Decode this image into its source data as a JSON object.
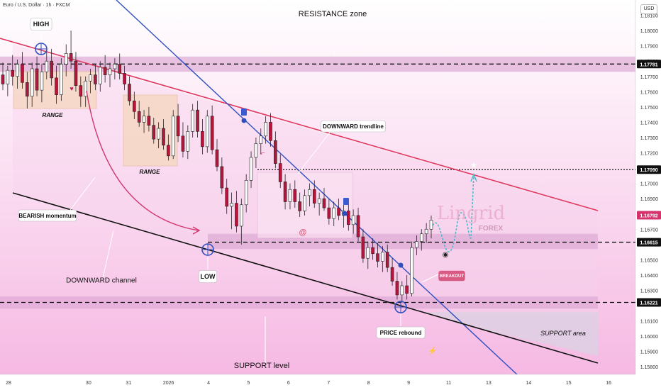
{
  "header": {
    "title": "Euro / U.S. Dollar · 1h · FXCM",
    "currency": "USD"
  },
  "watermark": {
    "brand": "Lingrid",
    "sub": "FOREX"
  },
  "colors": {
    "background_top": "#ffffff",
    "background_bottom": "#f7bde6",
    "channel_fill": "#f9dbef",
    "zone_fill": "#e4b3dc",
    "resistance_line": "#e0385f",
    "blue_trendline": "#2f4fbf",
    "support_line": "#111111",
    "candle_up": "#1a1a1a",
    "candle_down": "#1a1a1a",
    "candle_body_up": "#ffffff",
    "candle_body_down": "#b5163b",
    "range_box": "#f6d8c2",
    "projection": "#49b8c9",
    "breakout_badge": "#d85a83",
    "price_badge": "#111111"
  },
  "annotations": {
    "high": "HIGH",
    "low": "LOW",
    "range1": "RANGE",
    "range2": "RANGE",
    "resistance_zone": "RESISTANCE zone",
    "downward_trendline": "DOWNWARD trendline",
    "bearish_momentum": "BEARISH momentum",
    "downward_channel": "DOWNWARD channel",
    "support_level": "SUPPORT level",
    "support_area": "SUPPORT area",
    "price_rebound": "PRICE rebound",
    "breakout": "BREAKOUT"
  },
  "chart_data": {
    "type": "candlestick",
    "title": "Euro / U.S. Dollar · 1h · FXCM",
    "y_axis": {
      "range": [
        1.1575,
        1.182
      ],
      "ticks": [
        "1.18100",
        "1.18000",
        "1.17900",
        "1.17800",
        "1.17700",
        "1.17600",
        "1.17500",
        "1.17400",
        "1.17300",
        "1.17200",
        "1.17000",
        "1.16900",
        "1.16700",
        "1.16500",
        "1.16400",
        "1.16300",
        "1.16100",
        "1.16000",
        "1.15900",
        "1.15800"
      ],
      "tick_values": [
        1.181,
        1.18,
        1.179,
        1.178,
        1.177,
        1.176,
        1.175,
        1.174,
        1.173,
        1.172,
        1.17,
        1.169,
        1.167,
        1.165,
        1.164,
        1.163,
        1.161,
        1.16,
        1.159,
        1.158
      ]
    },
    "x_axis": {
      "ticks": [
        "28",
        "30",
        "31",
        "2026",
        "4",
        "5",
        "6",
        "7",
        "8",
        "9",
        "11",
        "13",
        "14",
        "15",
        "16"
      ],
      "tick_positions": [
        28,
        30,
        31,
        32,
        33,
        34,
        35,
        36,
        37,
        38,
        39,
        40,
        41,
        42,
        43
      ]
    },
    "price_levels": [
      {
        "value": 1.17781,
        "label": "1.17781",
        "style": "dashed"
      },
      {
        "value": 1.1709,
        "label": "1.17090",
        "style": "dotted"
      },
      {
        "value": 1.16792,
        "label": "1.16792",
        "style": "current"
      },
      {
        "value": 1.16615,
        "label": "1.16615",
        "style": "dashed"
      },
      {
        "value": 1.16221,
        "label": "1.16221",
        "style": "dashed"
      }
    ],
    "zones": [
      {
        "name": "resistance",
        "from": 1.1773,
        "to": 1.1783
      },
      {
        "name": "middle",
        "from": 1.1657,
        "to": 1.1667
      },
      {
        "name": "support",
        "from": 1.1618,
        "to": 1.1626
      }
    ],
    "candles": [
      [
        1.1771,
        1.1779,
        1.1761,
        1.1765
      ],
      [
        1.1765,
        1.1777,
        1.1757,
        1.1774
      ],
      [
        1.1774,
        1.1784,
        1.1764,
        1.177
      ],
      [
        1.177,
        1.1781,
        1.1762,
        1.1778
      ],
      [
        1.1778,
        1.1786,
        1.1762,
        1.1766
      ],
      [
        1.1766,
        1.1773,
        1.1749,
        1.1757
      ],
      [
        1.1757,
        1.1779,
        1.175,
        1.1775
      ],
      [
        1.1775,
        1.1783,
        1.1757,
        1.1761
      ],
      [
        1.1761,
        1.1778,
        1.1753,
        1.1773
      ],
      [
        1.1773,
        1.1787,
        1.1768,
        1.178
      ],
      [
        1.178,
        1.1788,
        1.1764,
        1.1769
      ],
      [
        1.1769,
        1.1777,
        1.1752,
        1.1758
      ],
      [
        1.1758,
        1.1782,
        1.1754,
        1.1778
      ],
      [
        1.1778,
        1.1791,
        1.177,
        1.1785
      ],
      [
        1.1785,
        1.18,
        1.1775,
        1.178
      ],
      [
        1.178,
        1.1786,
        1.176,
        1.1764
      ],
      [
        1.1764,
        1.177,
        1.175,
        1.1757
      ],
      [
        1.1757,
        1.177,
        1.175,
        1.1767
      ],
      [
        1.1767,
        1.1775,
        1.1759,
        1.1771
      ],
      [
        1.1771,
        1.1778,
        1.1761,
        1.1765
      ],
      [
        1.1765,
        1.178,
        1.176,
        1.1776
      ],
      [
        1.1776,
        1.1784,
        1.1766,
        1.1771
      ],
      [
        1.1771,
        1.1779,
        1.1763,
        1.1775
      ],
      [
        1.1775,
        1.1782,
        1.1768,
        1.1778
      ],
      [
        1.1778,
        1.1785,
        1.1768,
        1.1772
      ],
      [
        1.1772,
        1.1777,
        1.1761,
        1.1765
      ],
      [
        1.1765,
        1.177,
        1.1751,
        1.1754
      ],
      [
        1.1754,
        1.176,
        1.1742,
        1.1747
      ],
      [
        1.1747,
        1.1754,
        1.1737,
        1.174
      ],
      [
        1.174,
        1.1748,
        1.1733,
        1.1744
      ],
      [
        1.1744,
        1.175,
        1.1734,
        1.1738
      ],
      [
        1.1738,
        1.1743,
        1.1726,
        1.1729
      ],
      [
        1.1729,
        1.174,
        1.1723,
        1.1736
      ],
      [
        1.1736,
        1.1742,
        1.1722,
        1.1725
      ],
      [
        1.1725,
        1.1732,
        1.1715,
        1.1718
      ],
      [
        1.1718,
        1.1748,
        1.1716,
        1.1744
      ],
      [
        1.1744,
        1.1752,
        1.1727,
        1.1731
      ],
      [
        1.1731,
        1.174,
        1.1717,
        1.1721
      ],
      [
        1.1721,
        1.1738,
        1.1716,
        1.1734
      ],
      [
        1.1734,
        1.1752,
        1.173,
        1.1748
      ],
      [
        1.1748,
        1.1754,
        1.173,
        1.1734
      ],
      [
        1.1734,
        1.1742,
        1.1719,
        1.1724
      ],
      [
        1.1724,
        1.1748,
        1.172,
        1.1744
      ],
      [
        1.1744,
        1.1751,
        1.1719,
        1.1722
      ],
      [
        1.1722,
        1.1729,
        1.1708,
        1.1711
      ],
      [
        1.1711,
        1.1717,
        1.1693,
        1.1697
      ],
      [
        1.1697,
        1.1703,
        1.168,
        1.1685
      ],
      [
        1.1685,
        1.1694,
        1.167,
        1.1687
      ],
      [
        1.1687,
        1.1695,
        1.1668,
        1.1672
      ],
      [
        1.1672,
        1.169,
        1.166,
        1.1686
      ],
      [
        1.1686,
        1.1706,
        1.1681,
        1.1702
      ],
      [
        1.1702,
        1.1721,
        1.1697,
        1.1717
      ],
      [
        1.1717,
        1.173,
        1.171,
        1.1726
      ],
      [
        1.1726,
        1.1736,
        1.1719,
        1.1731
      ],
      [
        1.1731,
        1.1744,
        1.1726,
        1.174
      ],
      [
        1.174,
        1.1746,
        1.1724,
        1.1728
      ],
      [
        1.1728,
        1.1734,
        1.171,
        1.1713
      ],
      [
        1.1713,
        1.1719,
        1.1697,
        1.1701
      ],
      [
        1.1701,
        1.1706,
        1.1683,
        1.1688
      ],
      [
        1.1688,
        1.17,
        1.1683,
        1.1696
      ],
      [
        1.1696,
        1.1702,
        1.1684,
        1.1688
      ],
      [
        1.1688,
        1.1694,
        1.1678,
        1.1682
      ],
      [
        1.1682,
        1.1696,
        1.1679,
        1.1692
      ],
      [
        1.1692,
        1.17,
        1.1685,
        1.1696
      ],
      [
        1.1696,
        1.1702,
        1.1684,
        1.1687
      ],
      [
        1.1687,
        1.1694,
        1.1679,
        1.169
      ],
      [
        1.169,
        1.1697,
        1.1682,
        1.1684
      ],
      [
        1.1684,
        1.169,
        1.1673,
        1.1677
      ],
      [
        1.1677,
        1.1688,
        1.1672,
        1.1684
      ],
      [
        1.1684,
        1.169,
        1.1676,
        1.1679
      ],
      [
        1.1679,
        1.1686,
        1.1671,
        1.1682
      ],
      [
        1.1682,
        1.1688,
        1.1669,
        1.1673
      ],
      [
        1.1673,
        1.1683,
        1.1667,
        1.1679
      ],
      [
        1.1679,
        1.1684,
        1.1662,
        1.1665
      ],
      [
        1.1665,
        1.167,
        1.1648,
        1.1651
      ],
      [
        1.1651,
        1.1662,
        1.1644,
        1.1658
      ],
      [
        1.1658,
        1.1664,
        1.165,
        1.1654
      ],
      [
        1.1654,
        1.1661,
        1.1645,
        1.1649
      ],
      [
        1.1649,
        1.1659,
        1.1642,
        1.1655
      ],
      [
        1.1655,
        1.166,
        1.1642,
        1.1645
      ],
      [
        1.1645,
        1.1651,
        1.1633,
        1.1636
      ],
      [
        1.1636,
        1.1642,
        1.1624,
        1.1627
      ],
      [
        1.1627,
        1.1636,
        1.1622,
        1.1633
      ],
      [
        1.1633,
        1.164,
        1.1624,
        1.1628
      ],
      [
        1.1628,
        1.1662,
        1.1626,
        1.1658
      ],
      [
        1.1658,
        1.1666,
        1.1653,
        1.1662
      ],
      [
        1.1662,
        1.167,
        1.1656,
        1.1667
      ],
      [
        1.1667,
        1.1674,
        1.1661,
        1.167
      ],
      [
        1.167,
        1.1679,
        1.1664,
        1.1676
      ]
    ],
    "projection_path": [
      [
        1.1677,
        0
      ],
      [
        1.1664,
        1
      ],
      [
        1.1676,
        2
      ],
      [
        1.1661,
        3
      ],
      [
        1.1708,
        4
      ]
    ]
  }
}
